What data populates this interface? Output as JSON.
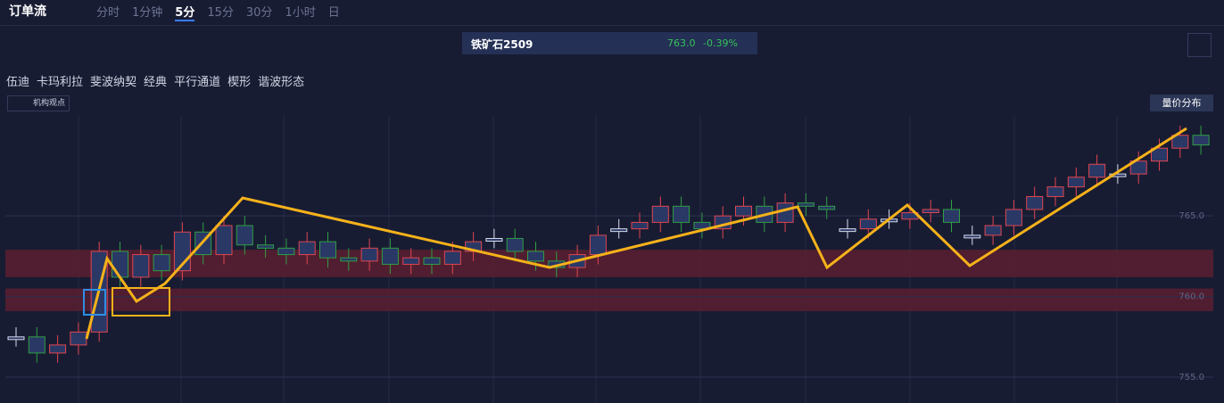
{
  "toolbar": {
    "title": "订单流",
    "periods": [
      "分时",
      "1分钟",
      "5分",
      "15分",
      "30分",
      "1小时",
      "日"
    ],
    "active_period": 2
  },
  "symbol": {
    "name": "铁矿石2509",
    "price": "763.0",
    "change": "-0.39%"
  },
  "tools": [
    "伍迪",
    "卡玛利拉",
    "斐波纳契",
    "经典",
    "平行通道",
    "楔形",
    "谐波形态"
  ],
  "views_button": "机构观点",
  "volume_button": "量价分布",
  "chart_data": {
    "type": "candlestick",
    "open": [
      757.5,
      757.5,
      756.5,
      757.0,
      757.8,
      762.8,
      761.2,
      762.6,
      761.6,
      764.0,
      762.6,
      764.4,
      763.2,
      763.0,
      762.6,
      763.4,
      762.4,
      762.2,
      763.0,
      762.0,
      762.4,
      762.0,
      762.8,
      763.6,
      763.6,
      762.8,
      762.2,
      761.8,
      762.6,
      764.2,
      764.2,
      764.6,
      765.6,
      764.6,
      764.2,
      765.0,
      765.6,
      764.6,
      765.8,
      765.6,
      764.2,
      764.2,
      764.8,
      764.8,
      765.2,
      765.4,
      763.8,
      763.8,
      764.4,
      765.4,
      766.2,
      766.8,
      767.4,
      767.6,
      767.6,
      768.4,
      769.2,
      770.0
    ],
    "high": [
      758.1,
      758.1,
      757.6,
      758.4,
      763.4,
      763.4,
      763.2,
      763.2,
      764.6,
      764.6,
      765.0,
      765.0,
      763.8,
      763.6,
      764.0,
      764.0,
      763.0,
      763.6,
      763.6,
      763.0,
      763.0,
      763.4,
      764.0,
      764.2,
      764.2,
      763.4,
      762.8,
      763.2,
      764.4,
      764.8,
      765.2,
      766.2,
      766.2,
      765.2,
      765.6,
      766.2,
      766.2,
      766.4,
      766.4,
      766.2,
      764.8,
      765.4,
      765.4,
      765.8,
      766.0,
      766.0,
      764.4,
      765.0,
      766.0,
      766.8,
      767.4,
      768.0,
      768.8,
      768.2,
      769.0,
      769.8,
      770.6,
      770.6
    ],
    "low": [
      756.9,
      755.9,
      755.9,
      756.4,
      757.2,
      760.6,
      760.6,
      761.0,
      761.0,
      762.0,
      762.0,
      762.6,
      762.4,
      762.0,
      762.0,
      761.8,
      761.6,
      761.6,
      761.4,
      761.4,
      761.4,
      761.4,
      762.2,
      763.0,
      762.2,
      761.6,
      761.2,
      761.2,
      762.0,
      763.6,
      763.6,
      764.0,
      764.0,
      763.6,
      763.6,
      764.4,
      764.0,
      764.0,
      765.0,
      764.8,
      763.6,
      763.6,
      764.2,
      764.2,
      764.6,
      764.0,
      763.2,
      763.2,
      763.8,
      764.8,
      765.6,
      766.2,
      766.8,
      767.0,
      767.0,
      767.8,
      768.6,
      768.8
    ],
    "close": [
      757.5,
      756.5,
      757.0,
      757.8,
      762.8,
      761.2,
      762.6,
      761.6,
      764.0,
      762.6,
      764.4,
      763.2,
      763.0,
      762.6,
      763.4,
      762.4,
      762.2,
      763.0,
      762.0,
      762.4,
      762.0,
      762.8,
      763.4,
      763.6,
      762.8,
      762.2,
      761.8,
      762.6,
      763.8,
      764.2,
      764.6,
      765.6,
      764.6,
      764.2,
      765.0,
      765.6,
      764.6,
      765.8,
      765.6,
      765.4,
      764.2,
      764.8,
      764.8,
      765.2,
      765.4,
      764.6,
      763.8,
      764.4,
      765.4,
      766.2,
      766.8,
      767.4,
      768.2,
      767.6,
      768.4,
      769.2,
      770.0,
      769.4
    ],
    "up_color": "#e0454f",
    "down_color": "#2f9e44",
    "flat_color": "#d8dcea",
    "zones": [
      {
        "from": 761.2,
        "to": 762.9
      },
      {
        "from": 759.1,
        "to": 760.5
      }
    ],
    "zone_color": "#5a1f30",
    "ylim": [
      753.4,
      771.2
    ],
    "yticks": [
      {
        "value": 755,
        "label": "755.0"
      },
      {
        "value": 760,
        "label": "760.0"
      },
      {
        "value": 765,
        "label": "765.0"
      }
    ],
    "grid": true
  }
}
